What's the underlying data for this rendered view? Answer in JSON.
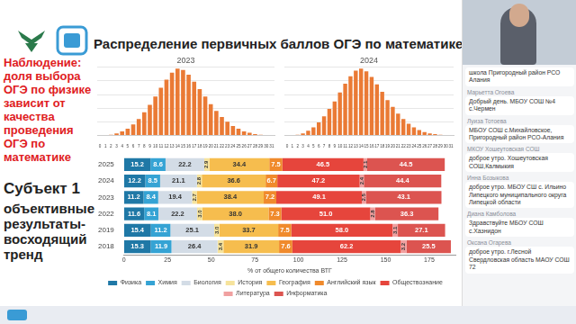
{
  "slide": {
    "title": "Распределение первичных баллов ОГЭ по математике",
    "observation": "Наблюдение: доля выбора ОГЭ по физике зависит от качества проведения ОГЭ по математике",
    "subject": "Субъект 1",
    "subject_note": "объективные результаты-восходящий тренд"
  },
  "chat": [
    {
      "text": "школа Пригородный район РСО Алания"
    },
    {
      "name": "Марьетта Огоева",
      "text": "Добрый день. МБОУ СОШ №4 с.Чермен"
    },
    {
      "name": "Луиза Тотоева",
      "text": "МБОУ СОШ с.Михайловское, Пригородный район РСО-Алания"
    },
    {
      "name": "МКОУ Хошеутовская СОШ",
      "text": "доброе утро. Хошеутовская СОШ,Калмыкия"
    },
    {
      "name": "Инна Бозыкова",
      "text": "доброе утро. МБОУ СШ с. Ильино Липецкого муниципального округа Липецкой области"
    },
    {
      "name": "Диана Камболова",
      "text": "Здравствуйте МБОУ СОШ с.Хазнидон"
    },
    {
      "name": "Оксана Огарева",
      "text": "доброе утро. г.Лесной Свердловская область МАОУ СОШ 72"
    }
  ],
  "chart_data": [
    {
      "type": "bar",
      "title": "2023",
      "categories": [
        0,
        1,
        2,
        3,
        4,
        5,
        6,
        7,
        8,
        9,
        10,
        11,
        12,
        13,
        14,
        15,
        16,
        17,
        18,
        19,
        20,
        21,
        22,
        23,
        24,
        25,
        26,
        27,
        28,
        29,
        30,
        31
      ],
      "values": [
        0,
        0,
        0.1,
        0.3,
        0.6,
        1.0,
        1.6,
        2.4,
        3.4,
        4.5,
        5.7,
        7.0,
        8.2,
        9.2,
        9.8,
        9.6,
        8.9,
        7.9,
        6.8,
        5.7,
        4.6,
        3.6,
        2.7,
        2.0,
        1.4,
        1.0,
        0.6,
        0.4,
        0.2,
        0.1,
        0.05,
        0
      ],
      "color": "#ea7a35",
      "ylim": [
        0,
        10
      ],
      "yticks": [
        0,
        2,
        4,
        6,
        8,
        10
      ],
      "grid": true,
      "tick_labels": "x"
    },
    {
      "type": "bar",
      "title": "2024",
      "categories": [
        0,
        1,
        2,
        3,
        4,
        5,
        6,
        7,
        8,
        9,
        10,
        11,
        12,
        13,
        14,
        15,
        16,
        17,
        18,
        19,
        20,
        21,
        22,
        23,
        24,
        25,
        26,
        27,
        28,
        29,
        30,
        31
      ],
      "values": [
        0,
        0,
        0.1,
        0.3,
        0.7,
        1.2,
        1.9,
        2.8,
        3.9,
        5.0,
        6.3,
        7.6,
        8.7,
        9.5,
        9.8,
        9.4,
        8.6,
        7.5,
        6.4,
        5.2,
        4.2,
        3.2,
        2.4,
        1.7,
        1.2,
        0.8,
        0.5,
        0.3,
        0.2,
        0.1,
        0.05,
        0
      ],
      "color": "#ea7a35",
      "ylim": [
        0,
        10
      ],
      "yticks": [
        0,
        2,
        4,
        6,
        8,
        10
      ],
      "grid": true,
      "tick_labels": "x"
    },
    {
      "type": "bar",
      "orientation": "horizontal",
      "stacked": true,
      "data_labels": true,
      "x_label": "% от общего количества ВТГ",
      "categories": [
        "2025",
        "2024",
        "2023",
        "2022",
        "2019",
        "2018"
      ],
      "series": [
        {
          "name": "Физика",
          "color": "#1f78a6",
          "values": [
            15.2,
            12.2,
            11.2,
            11.6,
            15.4,
            15.3
          ],
          "value_labels": [
            "15.2",
            "12.2",
            "11.2",
            "11.6",
            "15.4",
            "15.3"
          ]
        },
        {
          "name": "Химия",
          "color": "#35a3d4",
          "values": [
            8.6,
            8.5,
            8.4,
            8.1,
            11.2,
            11.9
          ],
          "value_labels": [
            "8.6",
            "8.5",
            "8.4",
            "8.1",
            "11.2",
            "11.9"
          ]
        },
        {
          "name": "Биология",
          "color": "#d3dce6",
          "values": [
            22.2,
            21.1,
            19.4,
            22.2,
            25.1,
            26.4
          ],
          "value_labels": [
            "22.2",
            "21.1",
            "19.4",
            "22.2",
            "25.1",
            "26.4"
          ]
        },
        {
          "name": "История",
          "color": "#f6e39c",
          "values": [
            2.9,
            2.8,
            2.7,
            3.0,
            3.0,
            3.4
          ],
          "value_labels": [
            "2.9",
            "2.8",
            "2.7",
            "3.0",
            "3.0",
            "3.4"
          ]
        },
        {
          "name": "География",
          "color": "#f6bd4e",
          "values": [
            34.4,
            36.6,
            38.4,
            38.0,
            33.7,
            31.9
          ],
          "value_labels": [
            "34.4",
            "36.6",
            "38.4",
            "38.0",
            "33.7",
            "31.9"
          ]
        },
        {
          "name": "Английский язык",
          "color": "#f08a2c",
          "values": [
            7.5,
            6.7,
            7.2,
            7.3,
            7.5,
            7.6
          ],
          "value_labels": [
            "7.5",
            "6.7",
            "7.2",
            "7.3",
            "7.5",
            "7.6"
          ]
        },
        {
          "name": "Обществознание",
          "color": "#e6453c",
          "values": [
            46.5,
            47.2,
            49.1,
            51.0,
            58.0,
            62.2
          ],
          "value_labels": [
            "46.5",
            "47.2",
            "49.1",
            "51.0",
            "58.0",
            "62.2"
          ]
        },
        {
          "name": "Литература",
          "color": "#f0a0a0",
          "values": [
            2.1,
            2.4,
            2.5,
            2.8,
            3.1,
            3.2
          ],
          "value_labels": [
            "2.1",
            "2.4",
            "2.5",
            "2.8",
            "3.1",
            "3.2"
          ]
        },
        {
          "name": "Информатика",
          "color": "#dc5450",
          "values": [
            44.5,
            44.4,
            43.1,
            36.3,
            27.1,
            25.5
          ],
          "value_labels": [
            "44.5",
            "44.4",
            "43.1",
            "36.3",
            "27.1",
            "25.5"
          ]
        }
      ],
      "xlim": [
        0,
        190
      ],
      "xticks": [
        0,
        25,
        50,
        75,
        100,
        125,
        150,
        175
      ],
      "grid": false,
      "legend": "bottom"
    }
  ]
}
